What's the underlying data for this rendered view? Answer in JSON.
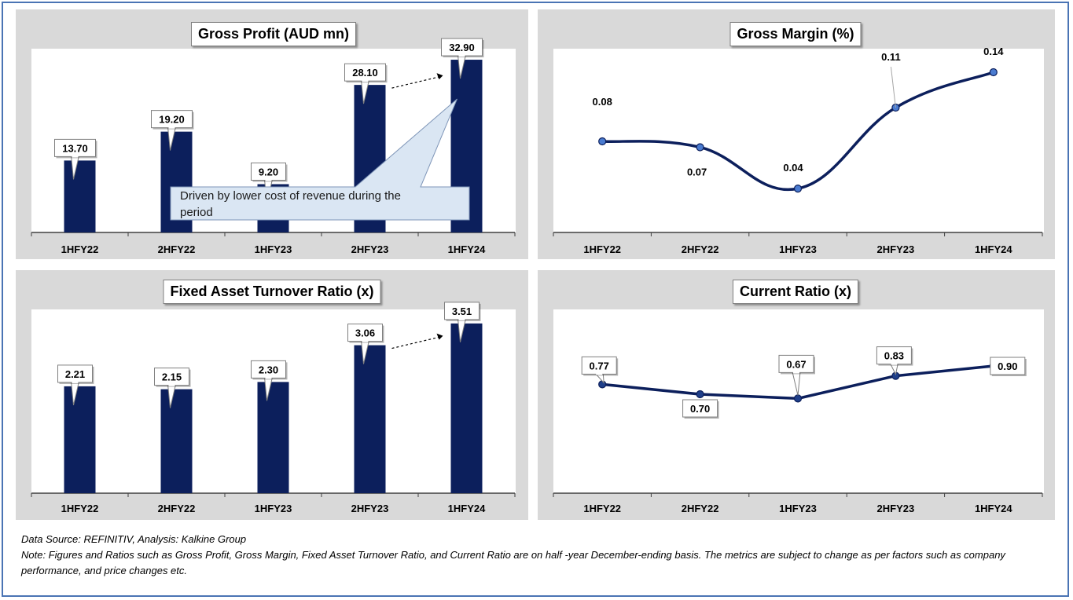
{
  "charts": [
    {
      "id": "gross-profit",
      "type": "bar",
      "title": "Gross Profit (AUD mn)",
      "categories": [
        "1HFY22",
        "2HFY22",
        "1HFY23",
        "2HFY23",
        "1HFY24"
      ],
      "values": [
        13.7,
        19.2,
        9.2,
        28.1,
        32.9
      ],
      "labels": [
        "13.70",
        "19.20",
        "9.20",
        "28.10",
        "32.90"
      ],
      "ylim": [
        0,
        35
      ],
      "annotation": "Driven by lower cost of revenue during the period",
      "color": "#0c1f5c"
    },
    {
      "id": "gross-margin",
      "type": "line",
      "title": "Gross Margin (%)",
      "categories": [
        "1HFY22",
        "2HFY22",
        "1HFY23",
        "2HFY23",
        "1HFY24"
      ],
      "values": [
        0.0793,
        0.0742,
        0.0382,
        0.1087,
        0.1395
      ],
      "labels": [
        "0.08",
        "0.07",
        "0.04",
        "0.11",
        "0.14"
      ],
      "ylim": [
        0,
        0.16
      ],
      "color": "#0c1f5c",
      "marker_color": "#4a7bd0"
    },
    {
      "id": "fixed-asset-turnover",
      "type": "bar",
      "title": "Fixed Asset Turnover Ratio (x)",
      "categories": [
        "1HFY22",
        "2HFY22",
        "1HFY23",
        "2HFY23",
        "1HFY24"
      ],
      "values": [
        2.21,
        2.15,
        2.3,
        3.06,
        3.51
      ],
      "labels": [
        "2.21",
        "2.15",
        "2.30",
        "3.06",
        "3.51"
      ],
      "ylim": [
        0,
        3.8
      ],
      "color": "#0c1f5c"
    },
    {
      "id": "current-ratio",
      "type": "line",
      "title": "Current Ratio (x)",
      "categories": [
        "1HFY22",
        "2HFY22",
        "1HFY23",
        "2HFY23",
        "1HFY24"
      ],
      "values": [
        0.77,
        0.7,
        0.67,
        0.83,
        0.9
      ],
      "labels": [
        "0.77",
        "0.70",
        "0.67",
        "0.83",
        "0.90"
      ],
      "ylim": [
        0,
        1.3
      ],
      "color": "#0c1f5c",
      "marker_color": "#1f3f8a"
    }
  ],
  "footer": {
    "source": "Data Source: REFINITIV, Analysis: Kalkine Group",
    "note": "Note: Figures and Ratios such as Gross Profit, Gross Margin, Fixed Asset Turnover Ratio, and Current Ratio are on half -year December-ending basis. The metrics are subject to change as per factors such as company performance, and price changes etc."
  }
}
